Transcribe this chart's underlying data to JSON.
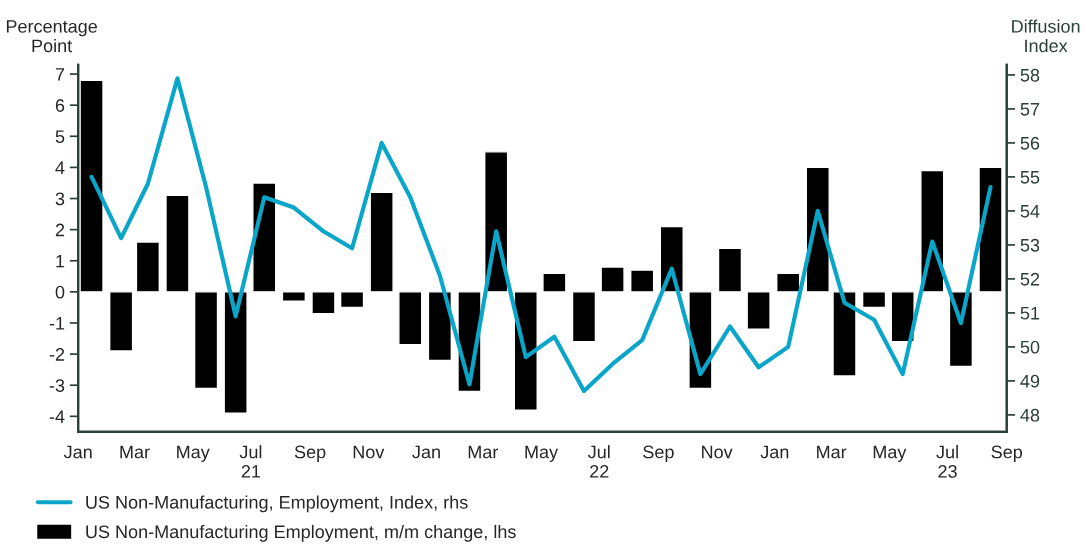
{
  "chart_data": {
    "type": "bar",
    "ylabel": "Percentage\nPoint",
    "y2label": "Diffusion\nIndex",
    "x": [
      "2021-01-15",
      "2021-02-15",
      "2021-03-15",
      "2021-04-15",
      "2021-05-15",
      "2021-06-15",
      "2021-07-15",
      "2021-08-15",
      "2021-09-15",
      "2021-10-15",
      "2021-11-15",
      "2021-12-15",
      "2022-01-15",
      "2022-02-15",
      "2022-03-15",
      "2022-04-15",
      "2022-05-15",
      "2022-06-15",
      "2022-07-15",
      "2022-08-15",
      "2022-09-15",
      "2022-10-15",
      "2022-11-15",
      "2022-12-15",
      "2023-01-15",
      "2023-02-15",
      "2023-03-15",
      "2023-04-15",
      "2023-05-15",
      "2023-06-15",
      "2023-07-15",
      "2023-08-15"
    ],
    "series": [
      {
        "name": "US Non-Manufacturing, Employment, Index, rhs",
        "type": "line",
        "axis": "y2",
        "color": "#0aa6c9",
        "values": [
          55.0,
          53.2,
          54.8,
          57.9,
          54.7,
          50.9,
          54.4,
          54.1,
          53.4,
          52.9,
          56.0,
          54.4,
          52.1,
          48.9,
          53.4,
          49.7,
          50.3,
          48.7,
          49.5,
          50.2,
          52.3,
          49.2,
          50.6,
          49.4,
          50.0,
          54.0,
          51.3,
          50.8,
          49.2,
          53.1,
          50.7,
          54.7
        ]
      },
      {
        "name": "US Non-Manufacturing Employment, m/m change, lhs",
        "color": "#000000",
        "values": [
          6.8,
          -1.9,
          1.6,
          3.1,
          -3.1,
          -3.9,
          3.5,
          -0.3,
          -0.7,
          -0.5,
          3.2,
          -1.7,
          -2.2,
          -3.2,
          4.5,
          -3.8,
          0.6,
          -1.6,
          0.8,
          0.7,
          2.1,
          -3.1,
          1.4,
          -1.2,
          0.6,
          4.0,
          -2.7,
          -0.5,
          -1.6,
          3.9,
          -2.4,
          4.0
        ]
      }
    ],
    "xlim": [
      "2021-01-01",
      "2023-09-01"
    ],
    "xticks": [
      {
        "value": "2021-01-01",
        "label": "Jan"
      },
      {
        "value": "2021-03-01",
        "label": "Mar"
      },
      {
        "value": "2021-05-01",
        "label": "May"
      },
      {
        "value": "2021-07-01",
        "label": "Jul\n21"
      },
      {
        "value": "2021-09-01",
        "label": "Sep"
      },
      {
        "value": "2021-11-01",
        "label": "Nov"
      },
      {
        "value": "2022-01-01",
        "label": "Jan"
      },
      {
        "value": "2022-03-01",
        "label": "Mar"
      },
      {
        "value": "2022-05-01",
        "label": "May"
      },
      {
        "value": "2022-07-01",
        "label": "Jul\n22"
      },
      {
        "value": "2022-09-01",
        "label": "Sep"
      },
      {
        "value": "2022-11-01",
        "label": "Nov"
      },
      {
        "value": "2023-01-01",
        "label": "Jan"
      },
      {
        "value": "2023-03-01",
        "label": "Mar"
      },
      {
        "value": "2023-05-01",
        "label": "May"
      },
      {
        "value": "2023-07-01",
        "label": "Jul\n23"
      },
      {
        "value": "2023-09-01",
        "label": "Sep"
      }
    ],
    "ylim": [
      -4.5,
      7.3
    ],
    "yticks": [
      -4,
      -3,
      -2,
      -1,
      0,
      1,
      2,
      3,
      4,
      5,
      6,
      7
    ],
    "y2lim": [
      47.5,
      58.3
    ],
    "y2ticks": [
      48,
      49,
      50,
      51,
      52,
      53,
      54,
      55,
      56,
      57,
      58
    ],
    "grid": false,
    "legend": "bottom"
  }
}
